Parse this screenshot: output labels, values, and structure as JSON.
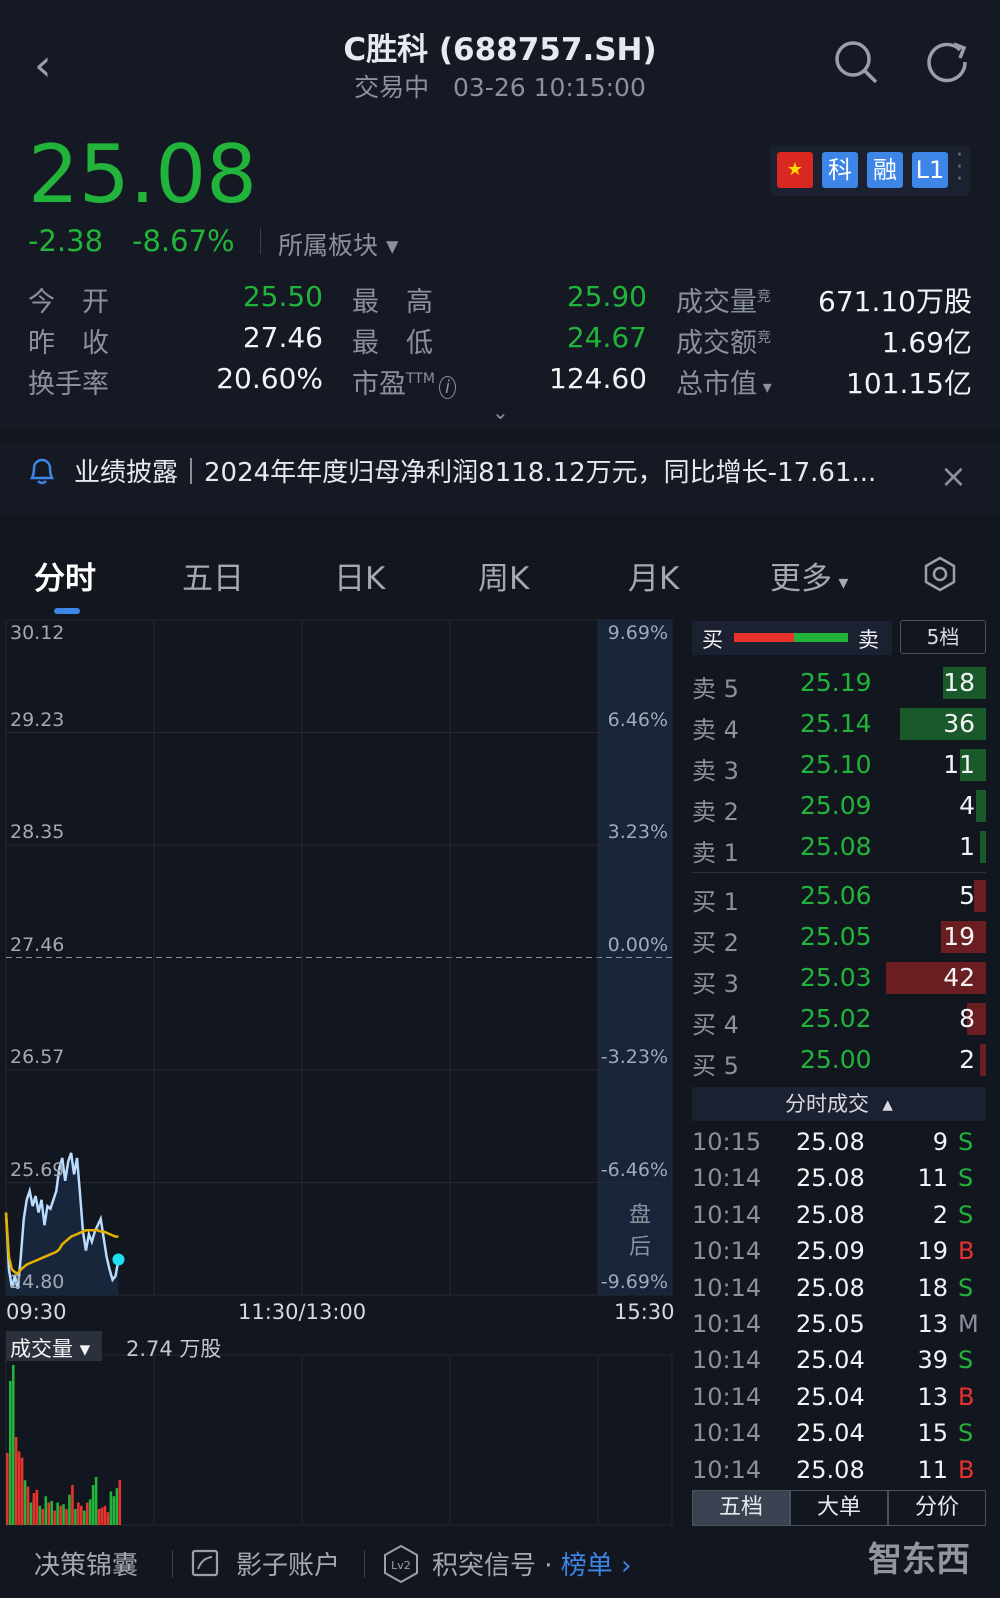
{
  "header": {
    "title": "C胜科 (688757.SH)",
    "status": "交易中",
    "datetime": "03-26 10:15:00",
    "icons": [
      "back-icon",
      "search-icon",
      "refresh-icon"
    ]
  },
  "quote": {
    "price": "25.08",
    "change": "-2.38",
    "change_pct": "-8.67%",
    "sector_label": "所属板块",
    "badges": [
      "科",
      "融",
      "L1"
    ],
    "stats": [
      {
        "k": "今　开",
        "v": "25.50",
        "c": "g"
      },
      {
        "k": "最　高",
        "v": "25.90",
        "c": "g"
      },
      {
        "k": "成交量",
        "sup": "竞",
        "v": "671.10万股",
        "c": "w"
      },
      {
        "k": "昨　收",
        "v": "27.46",
        "c": "w"
      },
      {
        "k": "最　低",
        "v": "24.67",
        "c": "g"
      },
      {
        "k": "成交额",
        "sup": "竞",
        "v": "1.69亿",
        "c": "w"
      },
      {
        "k": "换手率",
        "v": "20.60%",
        "c": "w"
      },
      {
        "k": "市盈",
        "sup": "TTM",
        "v": "124.60",
        "c": "w"
      },
      {
        "k": "总市值",
        "v": "101.15亿",
        "c": "w"
      }
    ]
  },
  "notice": {
    "text": "业绩披露｜2024年年度归母净利润8118.12万元，同比增长-17.61..."
  },
  "tabs": [
    "分时",
    "五日",
    "日K",
    "周K",
    "月K",
    "更多"
  ],
  "chart_data": {
    "type": "line",
    "price_ticks": [
      "30.12",
      "29.23",
      "28.35",
      "27.46",
      "26.57",
      "25.69",
      "24.80"
    ],
    "pct_ticks": [
      "9.69%",
      "6.46%",
      "3.23%",
      "0.00%",
      "-3.23%",
      "-6.46%",
      "-9.69%"
    ],
    "ylim": [
      24.8,
      30.12
    ],
    "prev_close": 27.46,
    "x_ticks": [
      "09:30",
      "11:30/13:00",
      "15:30"
    ],
    "after_hours_label": "盘后",
    "price": [
      25.45,
      25.0,
      24.86,
      24.95,
      24.85,
      25.1,
      25.4,
      25.55,
      25.62,
      25.5,
      25.58,
      25.45,
      25.55,
      25.35,
      25.5,
      25.48,
      25.55,
      25.62,
      25.8,
      25.88,
      25.7,
      25.85,
      25.92,
      25.75,
      25.88,
      25.6,
      25.3,
      25.15,
      25.28,
      25.22,
      25.3,
      25.35,
      25.4,
      25.25,
      25.1,
      25.0,
      24.92,
      24.95,
      25.08
    ],
    "avg": [
      25.45,
      25.1,
      25.0,
      24.98,
      24.97,
      25.0,
      25.02,
      25.04,
      25.05,
      25.06,
      25.07,
      25.08,
      25.09,
      25.1,
      25.11,
      25.12,
      25.13,
      25.14,
      25.16,
      25.2,
      25.22,
      25.24,
      25.26,
      25.27,
      25.28,
      25.29,
      25.3,
      25.31,
      25.31,
      25.31,
      25.31,
      25.31,
      25.3,
      25.3,
      25.29,
      25.28,
      25.27,
      25.26,
      25.26
    ],
    "volume_label": "成交量",
    "volume_value": "2.74 万股",
    "volume": [
      45,
      90,
      100,
      55,
      46,
      42,
      28,
      24,
      14,
      20,
      22,
      12,
      10,
      18,
      14,
      15,
      9,
      14,
      12,
      13,
      10,
      19,
      25,
      10,
      14,
      12,
      9,
      14,
      16,
      25,
      30,
      10,
      11,
      12,
      8,
      21,
      18,
      23,
      28
    ],
    "volume_dir": [
      "r",
      "g",
      "g",
      "r",
      "r",
      "r",
      "g",
      "r",
      "g",
      "r",
      "r",
      "g",
      "r",
      "g",
      "r",
      "g",
      "r",
      "g",
      "r",
      "g",
      "r",
      "g",
      "r",
      "g",
      "r",
      "r",
      "g",
      "r",
      "g",
      "g",
      "g",
      "r",
      "r",
      "r",
      "r",
      "g",
      "g",
      "g",
      "r"
    ]
  },
  "orderbook": {
    "header_left": "买",
    "header_right": "卖",
    "levels_label": "5档",
    "asks": [
      {
        "l": "卖 5",
        "p": "25.19",
        "v": "18",
        "f": 0.43
      },
      {
        "l": "卖 4",
        "p": "25.14",
        "v": "36",
        "f": 0.86
      },
      {
        "l": "卖 3",
        "p": "25.10",
        "v": "11",
        "f": 0.26
      },
      {
        "l": "卖 2",
        "p": "25.09",
        "v": "4",
        "f": 0.1
      },
      {
        "l": "卖 1",
        "p": "25.08",
        "v": "1",
        "f": 0.03
      }
    ],
    "bids": [
      {
        "l": "买 1",
        "p": "25.06",
        "v": "5",
        "f": 0.12
      },
      {
        "l": "买 2",
        "p": "25.05",
        "v": "19",
        "f": 0.45
      },
      {
        "l": "买 3",
        "p": "25.03",
        "v": "42",
        "f": 1.0
      },
      {
        "l": "买 4",
        "p": "25.02",
        "v": "8",
        "f": 0.19
      },
      {
        "l": "买 5",
        "p": "25.00",
        "v": "2",
        "f": 0.05
      }
    ],
    "ticks_label": "分时成交",
    "ticks": [
      {
        "t": "10:15",
        "p": "25.08",
        "v": "9",
        "s": "S"
      },
      {
        "t": "10:14",
        "p": "25.08",
        "v": "11",
        "s": "S"
      },
      {
        "t": "10:14",
        "p": "25.08",
        "v": "2",
        "s": "S"
      },
      {
        "t": "10:14",
        "p": "25.09",
        "v": "19",
        "s": "B"
      },
      {
        "t": "10:14",
        "p": "25.08",
        "v": "18",
        "s": "S"
      },
      {
        "t": "10:14",
        "p": "25.05",
        "v": "13",
        "s": "M"
      },
      {
        "t": "10:14",
        "p": "25.04",
        "v": "39",
        "s": "S"
      },
      {
        "t": "10:14",
        "p": "25.04",
        "v": "13",
        "s": "B"
      },
      {
        "t": "10:14",
        "p": "25.04",
        "v": "15",
        "s": "S"
      },
      {
        "t": "10:14",
        "p": "25.08",
        "v": "11",
        "s": "B"
      }
    ],
    "bottom_tabs": [
      "五档",
      "大单",
      "分价"
    ]
  },
  "footer": {
    "items": [
      "决策锦囊",
      "影子账户",
      "积突信号 · "
    ],
    "link": "榜单",
    "watermark": "智东西"
  },
  "colors": {
    "up": "#e8322e",
    "down": "#22b33a",
    "accent": "#3d86e8",
    "price_line": "#b9dcff",
    "avg_line": "#e6b000"
  }
}
